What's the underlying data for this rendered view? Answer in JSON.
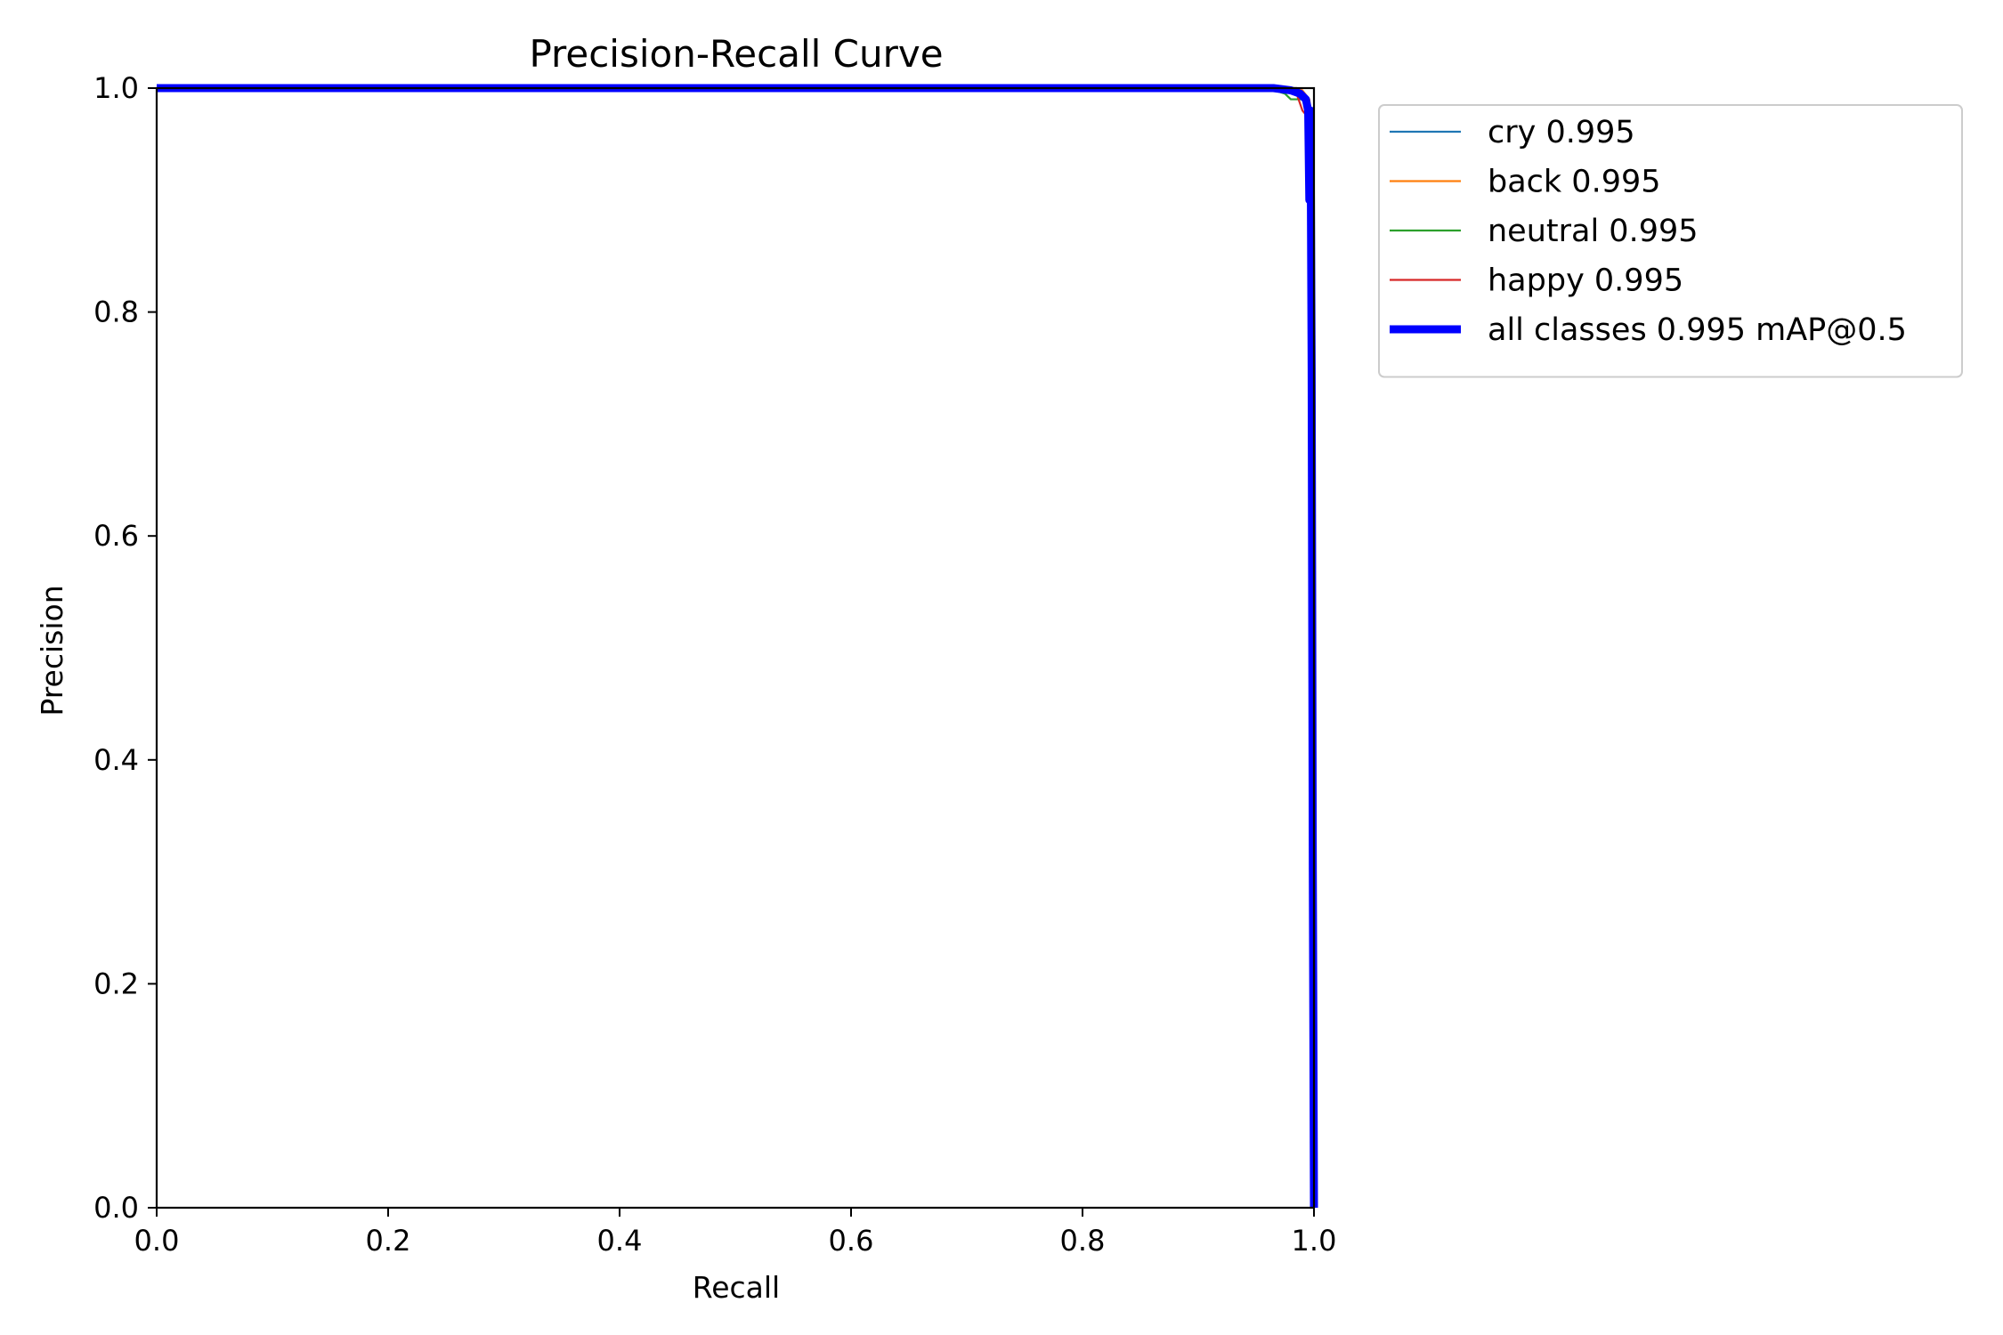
{
  "chart_data": {
    "type": "line",
    "title": "Precision-Recall Curve",
    "xlabel": "Recall",
    "ylabel": "Precision",
    "xlim": [
      0.0,
      1.0
    ],
    "ylim": [
      0.0,
      1.0
    ],
    "xticks": [
      "0.0",
      "0.2",
      "0.4",
      "0.6",
      "0.8",
      "1.0"
    ],
    "yticks": [
      "0.0",
      "0.2",
      "0.4",
      "0.6",
      "0.8",
      "1.0"
    ],
    "grid": false,
    "legend_position": "outside-right-top",
    "series": [
      {
        "name": "cry 0.995",
        "color": "#1f77b4",
        "x": [
          0.0,
          0.9,
          0.96,
          0.985,
          0.99,
          0.995,
          0.998,
          0.999,
          1.0
        ],
        "y": [
          1.0,
          1.0,
          1.0,
          1.0,
          0.997,
          0.99,
          0.96,
          0.5,
          0.0
        ]
      },
      {
        "name": "back 0.995",
        "color": "#ff7f0e",
        "x": [
          0.0,
          0.9,
          0.96,
          0.985,
          0.99,
          0.996,
          0.998,
          0.999,
          1.0
        ],
        "y": [
          1.0,
          1.0,
          1.0,
          1.0,
          0.998,
          0.99,
          0.97,
          0.6,
          0.0
        ]
      },
      {
        "name": "neutral 0.995",
        "color": "#2ca02c",
        "x": [
          0.0,
          0.92,
          0.96,
          0.975,
          0.98,
          0.99,
          0.995,
          0.998,
          0.999,
          1.0
        ],
        "y": [
          1.0,
          1.0,
          1.0,
          0.995,
          0.99,
          0.99,
          0.98,
          0.95,
          0.5,
          0.0
        ]
      },
      {
        "name": "happy 0.995",
        "color": "#d62728",
        "x": [
          0.0,
          0.9,
          0.97,
          0.985,
          0.99,
          0.994,
          0.997,
          0.999,
          1.0
        ],
        "y": [
          1.0,
          1.0,
          1.0,
          0.995,
          0.98,
          0.975,
          0.95,
          0.6,
          0.0
        ]
      },
      {
        "name": "all classes 0.995 mAP@0.5",
        "color": "#0000ff",
        "x": [
          0.0,
          0.93,
          0.965,
          0.98,
          0.988,
          0.993,
          0.995,
          0.996,
          0.997,
          0.998,
          0.999,
          1.0
        ],
        "y": [
          1.0,
          1.0,
          1.0,
          0.998,
          0.995,
          0.99,
          0.98,
          0.9,
          0.98,
          0.75,
          0.3,
          0.0
        ],
        "bold": true
      }
    ]
  }
}
